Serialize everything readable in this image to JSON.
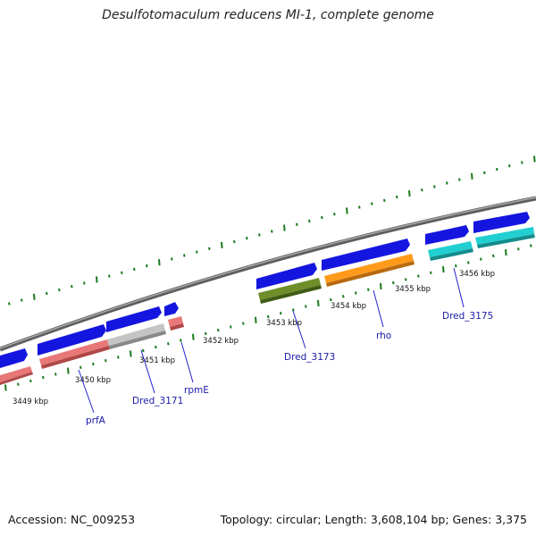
{
  "title": "Desulfotomaculum reducens MI-1, complete genome",
  "accession": "Accession: NC_009253",
  "summary": "Topology: circular; Length: 3,608,104 bp; Genes: 3,375",
  "colors": {
    "backbone": "#8a8a8a",
    "tick": "#1c7a1c",
    "cds_forward": "#1515e0",
    "label_line": "#2222cc",
    "gene_red": "#e87878",
    "gene_gray": "#c4c4c4",
    "gene_olive": "#6e8e2a",
    "gene_orange": "#ff9a1a",
    "gene_cyan": "#22cfd0"
  },
  "kbp_labels": [
    "3449 kbp",
    "3450 kbp",
    "3451 kbp",
    "3452 kbp",
    "3453 kbp",
    "3454 kbp",
    "3455 kbp",
    "3456 kbp"
  ],
  "gene_labels": [
    "prfA",
    "Dred_3171",
    "rpmE",
    "Dred_3173",
    "rho",
    "Dred_3175"
  ]
}
